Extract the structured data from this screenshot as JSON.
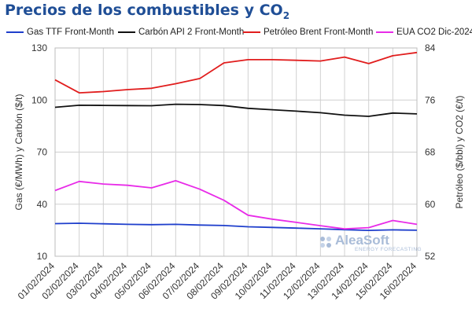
{
  "title_main": "Precios de los combustibles y CO",
  "title_sub": "2",
  "watermark": {
    "name": "AleaSoft",
    "sub": "ENERGY FORECASTING"
  },
  "chart_data": {
    "type": "line",
    "x": [
      "01/02/2024",
      "02/02/2024",
      "03/02/2024",
      "04/02/2024",
      "05/02/2024",
      "06/02/2024",
      "07/02/2024",
      "08/02/2024",
      "09/02/2024",
      "10/02/2024",
      "11/02/2024",
      "12/02/2024",
      "13/02/2024",
      "14/02/2024",
      "15/02/2024",
      "16/02/2024"
    ],
    "y_left": {
      "label": "Gas (€/MWh) y Carbón ($/t)",
      "min": 10,
      "max": 130,
      "ticks": [
        10,
        40,
        70,
        100,
        130
      ]
    },
    "y_right": {
      "label": "Petróleo ($/bbl) y CO2 (€/t)",
      "min": 52,
      "max": 84,
      "ticks": [
        52,
        60,
        68,
        76,
        84
      ]
    },
    "grid": true,
    "legend_position": "top",
    "series": [
      {
        "name": "Gas TTF Front-Month",
        "axis": "left",
        "color": "#1f3fcc",
        "values": [
          28.8,
          29.0,
          28.7,
          28.4,
          28.2,
          28.4,
          28.0,
          27.7,
          27.0,
          26.6,
          26.2,
          25.8,
          25.3,
          24.9,
          25.2,
          25.0
        ]
      },
      {
        "name": "Carbón API 2 Front-Month",
        "axis": "left",
        "color": "#111111",
        "values": [
          95.8,
          97.0,
          96.9,
          96.8,
          96.7,
          97.6,
          97.4,
          96.8,
          95.2,
          94.4,
          93.6,
          92.7,
          91.3,
          90.6,
          92.5,
          92.0
        ]
      },
      {
        "name": "Petróleo Brent Front-Month",
        "axis": "right",
        "color": "#e11d1d",
        "values": [
          79.1,
          77.1,
          77.3,
          77.6,
          77.8,
          78.5,
          79.3,
          81.7,
          82.2,
          82.2,
          82.1,
          82.0,
          82.6,
          81.6,
          82.8,
          83.3
        ]
      },
      {
        "name": "EUA CO2 Dic-2024",
        "axis": "right",
        "color": "#e82be8",
        "values": [
          62.1,
          63.5,
          63.1,
          62.9,
          62.5,
          63.6,
          62.3,
          60.6,
          58.3,
          57.7,
          57.2,
          56.7,
          56.2,
          56.4,
          57.5,
          56.9
        ]
      }
    ]
  }
}
